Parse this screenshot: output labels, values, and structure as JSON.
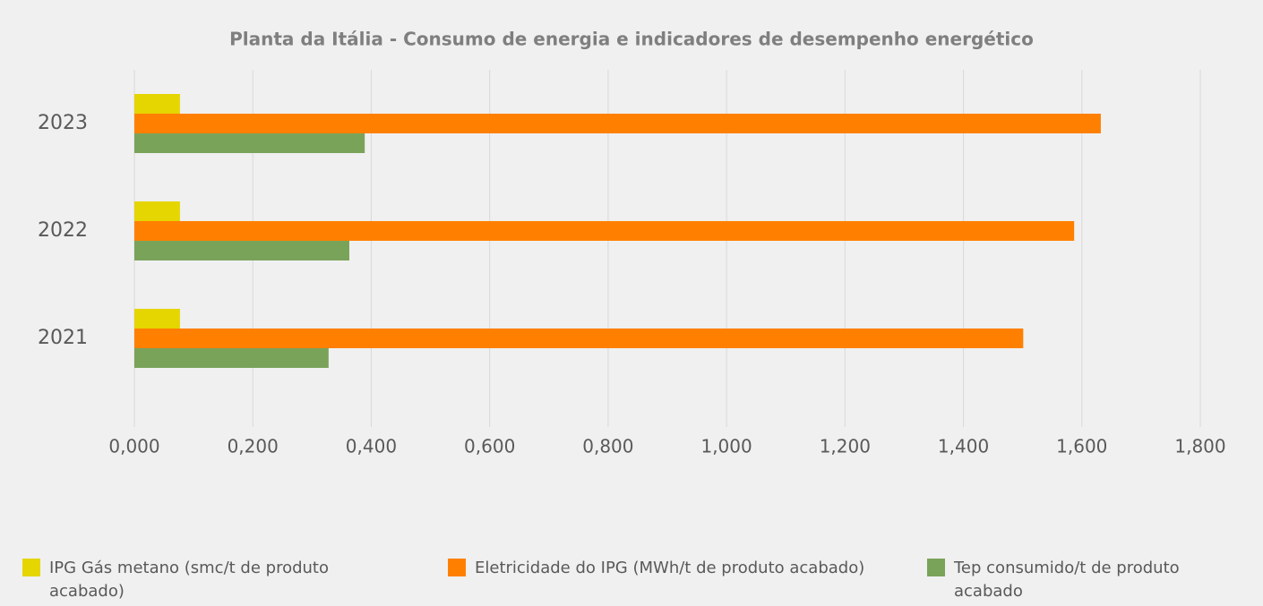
{
  "chart_data": {
    "type": "bar",
    "orientation": "horizontal",
    "title": "Planta da Itália - Consumo de energia e indicadores de desempenho energético",
    "categories": [
      "2021",
      "2022",
      "2023"
    ],
    "series": [
      {
        "name": "IPG Gás metano (smc/t de produto acabado)",
        "color": "#e5d500",
        "values": [
          0.077,
          0.077,
          0.077
        ]
      },
      {
        "name": "Eletricidade do IPG (MWh/t de produto acabado)",
        "color": "#ff8000",
        "values": [
          1.501,
          1.587,
          1.632
        ]
      },
      {
        "name": "Tep consumido/t de produto acabado",
        "color": "#7aa35a",
        "values": [
          0.328,
          0.363,
          0.389
        ]
      }
    ],
    "xlim": [
      0,
      1.8
    ],
    "xticks": [
      {
        "value": 0,
        "label": "0,000"
      },
      {
        "value": 0.2,
        "label": "0,200"
      },
      {
        "value": 0.4,
        "label": "0,400"
      },
      {
        "value": 0.6,
        "label": "0,600"
      },
      {
        "value": 0.8,
        "label": "0,800"
      },
      {
        "value": 1.0,
        "label": "1,000"
      },
      {
        "value": 1.2,
        "label": "1,200"
      },
      {
        "value": 1.4,
        "label": "1,400"
      },
      {
        "value": 1.6,
        "label": "1,600"
      },
      {
        "value": 1.8,
        "label": "1,800"
      }
    ],
    "grid": true,
    "legend": "bottom"
  }
}
